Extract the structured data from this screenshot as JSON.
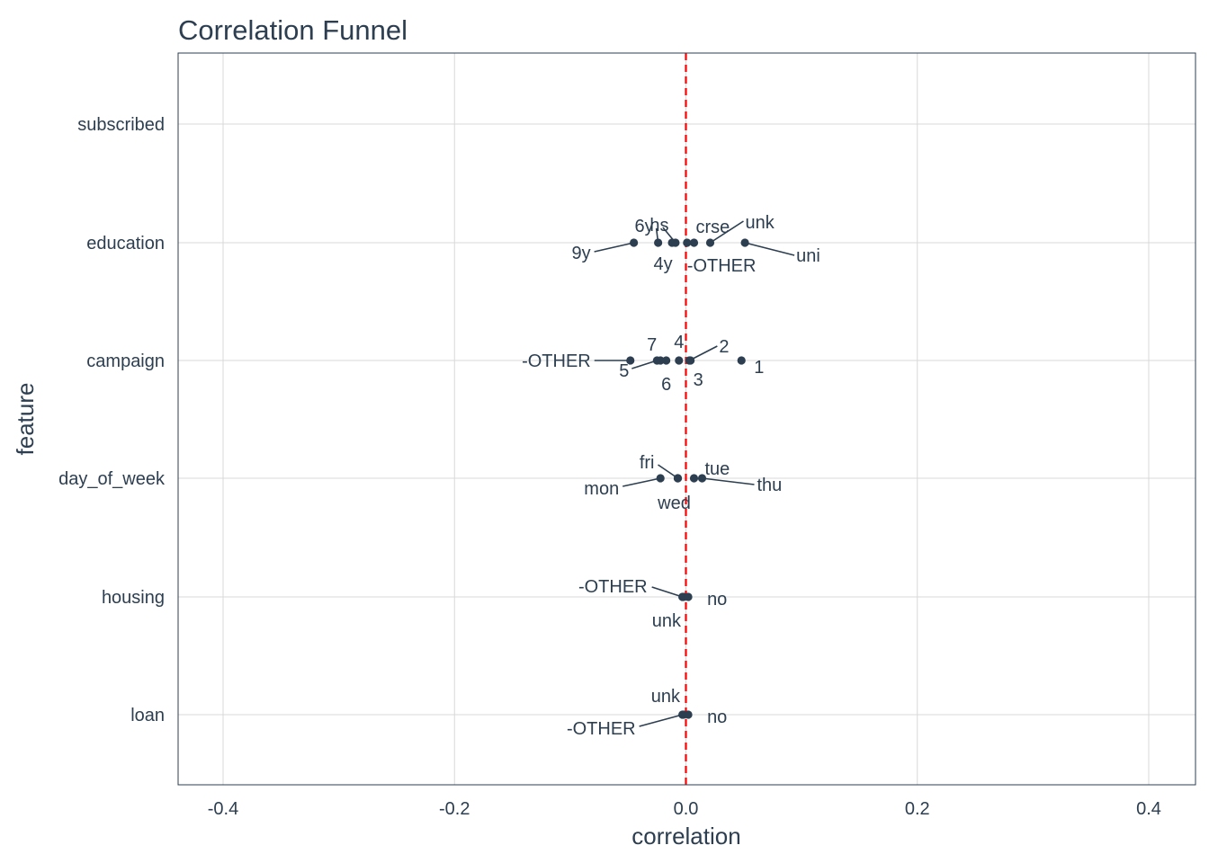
{
  "chart_data": {
    "type": "scatter",
    "title": "Correlation Funnel",
    "xlabel": "correlation",
    "ylabel": "feature",
    "xlim": [
      -0.4,
      0.4
    ],
    "x_ticks": [
      "-0.4",
      "-0.2",
      "0.0",
      "0.2",
      "0.4"
    ],
    "x_tick_values": [
      -0.4,
      -0.2,
      0.0,
      0.2,
      0.4
    ],
    "categories": [
      "subscribed",
      "education",
      "campaign",
      "day_of_week",
      "housing",
      "loan"
    ],
    "grid": true,
    "reference_line": {
      "x": 0,
      "style": "dashed",
      "color": "#ff0000"
    },
    "point_color": "#2c3e50",
    "series": [
      {
        "feature": "subscribed",
        "points": []
      },
      {
        "feature": "education",
        "points": [
          {
            "label": "9y",
            "x": -0.045
          },
          {
            "label": "6y",
            "x": -0.024
          },
          {
            "label": "4y",
            "x": -0.012
          },
          {
            "label": "hs",
            "x": -0.009
          },
          {
            "label": "-OTHER",
            "x": 0.001
          },
          {
            "label": "crse",
            "x": 0.007
          },
          {
            "label": "unk",
            "x": 0.021
          },
          {
            "label": "uni",
            "x": 0.051
          }
        ]
      },
      {
        "feature": "campaign",
        "points": [
          {
            "label": "-OTHER",
            "x": -0.048
          },
          {
            "label": "5",
            "x": -0.025
          },
          {
            "label": "7",
            "x": -0.022
          },
          {
            "label": "6",
            "x": -0.017
          },
          {
            "label": "4",
            "x": -0.006
          },
          {
            "label": "2",
            "x": 0.003
          },
          {
            "label": "3",
            "x": 0.004
          },
          {
            "label": "1",
            "x": 0.048
          }
        ]
      },
      {
        "feature": "day_of_week",
        "points": [
          {
            "label": "mon",
            "x": -0.022
          },
          {
            "label": "fri",
            "x": -0.007
          },
          {
            "label": "wed",
            "x": -0.007
          },
          {
            "label": "tue",
            "x": 0.007
          },
          {
            "label": "thu",
            "x": 0.014
          }
        ]
      },
      {
        "feature": "housing",
        "points": [
          {
            "label": "-OTHER",
            "x": -0.003
          },
          {
            "label": "unk",
            "x": -0.002
          },
          {
            "label": "no",
            "x": 0.002
          }
        ]
      },
      {
        "feature": "loan",
        "points": [
          {
            "label": "-OTHER",
            "x": -0.003
          },
          {
            "label": "unk",
            "x": -0.002
          },
          {
            "label": "no",
            "x": 0.002
          }
        ]
      }
    ]
  }
}
